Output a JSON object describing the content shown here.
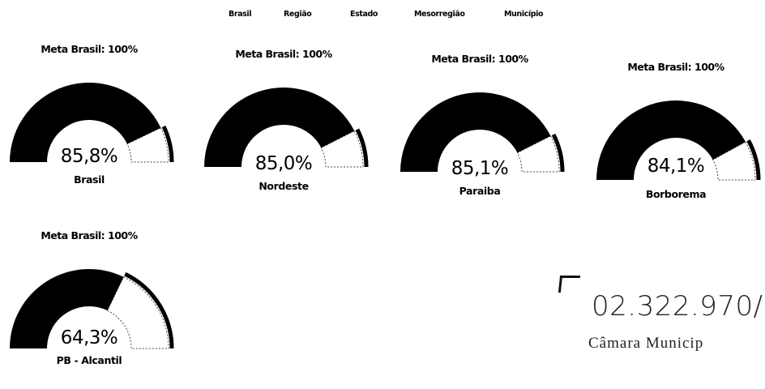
{
  "tabs": [
    "Brasil",
    "Região",
    "Estado",
    "Mesorregião",
    "Município"
  ],
  "gauges": [
    {
      "meta": "Meta Brasil: 100%",
      "value_text": "85,8%",
      "value": 85.8,
      "label": "Brasil"
    },
    {
      "meta": "Meta Brasil: 100%",
      "value_text": "85,0%",
      "value": 85.0,
      "label": "Nordeste"
    },
    {
      "meta": "Meta Brasil: 100%",
      "value_text": "85,1%",
      "value": 85.1,
      "label": "Paraiba"
    },
    {
      "meta": "Meta Brasil: 100%",
      "value_text": "84,1%",
      "value": 84.1,
      "label": "Borborema"
    },
    {
      "meta": "Meta Brasil: 100%",
      "value_text": "64,3%",
      "value": 64.3,
      "label": "PB - Alcantil"
    }
  ],
  "stamp": {
    "code": "02.322.970/",
    "org": "Câmara  Municip"
  },
  "colors": {
    "fill": "#000000",
    "remainder": "#ffffff",
    "outline": "#444444"
  }
}
